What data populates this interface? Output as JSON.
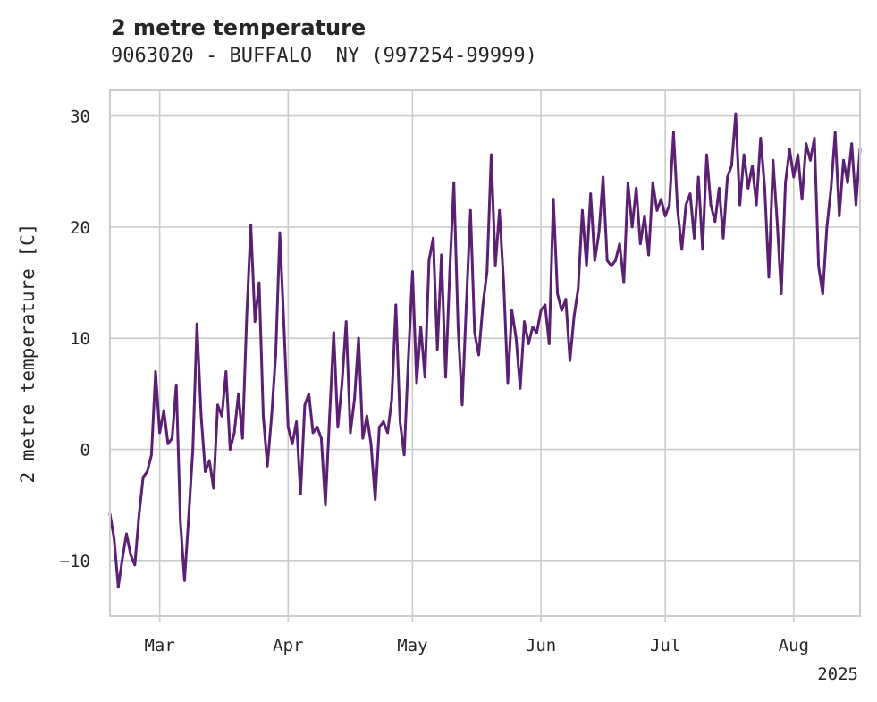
{
  "chart_data": {
    "type": "line",
    "title": "2 metre temperature",
    "subtitle": "9063020 - BUFFALO  NY (997254-99999)",
    "xlabel": "",
    "ylabel": "2 metre temperature [C]",
    "x_tick_labels": [
      "Mar",
      "Apr",
      "May",
      "Jun",
      "Jul",
      "Aug"
    ],
    "x_offset_label": "2025",
    "y_tick_labels": [
      "−10",
      "0",
      "10",
      "20",
      "30"
    ],
    "y_ticks": [
      -10,
      0,
      10,
      20,
      30
    ],
    "ylim": [
      -15,
      32.3
    ],
    "xlim": [
      "2025-02-17",
      "2025-08-17"
    ],
    "grid": true,
    "series": [
      {
        "color": "#5b1f73",
        "points": [
          [
            "2025-02-17",
            -5.8
          ],
          [
            "2025-02-18",
            -8.0
          ],
          [
            "2025-02-19",
            -12.4
          ],
          [
            "2025-02-20",
            -9.8
          ],
          [
            "2025-02-21",
            -7.6
          ],
          [
            "2025-02-22",
            -9.5
          ],
          [
            "2025-02-23",
            -10.4
          ],
          [
            "2025-02-24",
            -6.0
          ],
          [
            "2025-02-25",
            -2.5
          ],
          [
            "2025-02-26",
            -2.0
          ],
          [
            "2025-02-27",
            -0.5
          ],
          [
            "2025-02-28",
            7.0
          ],
          [
            "2025-03-01",
            1.5
          ],
          [
            "2025-03-02",
            3.5
          ],
          [
            "2025-03-03",
            0.5
          ],
          [
            "2025-03-04",
            1.0
          ],
          [
            "2025-03-05",
            5.8
          ],
          [
            "2025-03-06",
            -6.5
          ],
          [
            "2025-03-07",
            -11.8
          ],
          [
            "2025-03-08",
            -6.0
          ],
          [
            "2025-03-09",
            0.0
          ],
          [
            "2025-03-10",
            11.3
          ],
          [
            "2025-03-11",
            3.0
          ],
          [
            "2025-03-12",
            -2.0
          ],
          [
            "2025-03-13",
            -1.0
          ],
          [
            "2025-03-14",
            -3.5
          ],
          [
            "2025-03-15",
            4.0
          ],
          [
            "2025-03-16",
            3.0
          ],
          [
            "2025-03-17",
            7.0
          ],
          [
            "2025-03-18",
            0.0
          ],
          [
            "2025-03-19",
            1.5
          ],
          [
            "2025-03-20",
            5.0
          ],
          [
            "2025-03-21",
            1.0
          ],
          [
            "2025-03-22",
            12.0
          ],
          [
            "2025-03-23",
            20.2
          ],
          [
            "2025-03-24",
            11.5
          ],
          [
            "2025-03-25",
            15.0
          ],
          [
            "2025-03-26",
            3.0
          ],
          [
            "2025-03-27",
            -1.5
          ],
          [
            "2025-03-28",
            3.0
          ],
          [
            "2025-03-29",
            8.5
          ],
          [
            "2025-03-30",
            19.5
          ],
          [
            "2025-03-31",
            11.0
          ],
          [
            "2025-04-01",
            2.0
          ],
          [
            "2025-04-02",
            0.5
          ],
          [
            "2025-04-03",
            2.5
          ],
          [
            "2025-04-04",
            -4.0
          ],
          [
            "2025-04-05",
            4.0
          ],
          [
            "2025-04-06",
            5.0
          ],
          [
            "2025-04-07",
            1.5
          ],
          [
            "2025-04-08",
            2.0
          ],
          [
            "2025-04-09",
            1.0
          ],
          [
            "2025-04-10",
            -5.0
          ],
          [
            "2025-04-11",
            3.0
          ],
          [
            "2025-04-12",
            10.5
          ],
          [
            "2025-04-13",
            2.0
          ],
          [
            "2025-04-14",
            6.0
          ],
          [
            "2025-04-15",
            11.5
          ],
          [
            "2025-04-16",
            1.5
          ],
          [
            "2025-04-17",
            4.5
          ],
          [
            "2025-04-18",
            10.0
          ],
          [
            "2025-04-19",
            1.0
          ],
          [
            "2025-04-20",
            3.0
          ],
          [
            "2025-04-21",
            0.5
          ],
          [
            "2025-04-22",
            -4.5
          ],
          [
            "2025-04-23",
            2.0
          ],
          [
            "2025-04-24",
            2.5
          ],
          [
            "2025-04-25",
            1.5
          ],
          [
            "2025-04-26",
            4.5
          ],
          [
            "2025-04-27",
            13.0
          ],
          [
            "2025-04-28",
            2.5
          ],
          [
            "2025-04-29",
            -0.5
          ],
          [
            "2025-04-30",
            8.0
          ],
          [
            "2025-05-01",
            16.0
          ],
          [
            "2025-05-02",
            6.0
          ],
          [
            "2025-05-03",
            11.0
          ],
          [
            "2025-05-04",
            6.5
          ],
          [
            "2025-05-05",
            17.0
          ],
          [
            "2025-05-06",
            19.0
          ],
          [
            "2025-05-07",
            9.0
          ],
          [
            "2025-05-08",
            17.5
          ],
          [
            "2025-05-09",
            6.5
          ],
          [
            "2025-05-10",
            16.0
          ],
          [
            "2025-05-11",
            24.0
          ],
          [
            "2025-05-12",
            11.0
          ],
          [
            "2025-05-13",
            4.0
          ],
          [
            "2025-05-14",
            13.0
          ],
          [
            "2025-05-15",
            21.5
          ],
          [
            "2025-05-16",
            10.5
          ],
          [
            "2025-05-17",
            8.5
          ],
          [
            "2025-05-18",
            13.0
          ],
          [
            "2025-05-19",
            16.0
          ],
          [
            "2025-05-20",
            26.5
          ],
          [
            "2025-05-21",
            16.5
          ],
          [
            "2025-05-22",
            21.5
          ],
          [
            "2025-05-23",
            15.0
          ],
          [
            "2025-05-24",
            6.0
          ],
          [
            "2025-05-25",
            12.5
          ],
          [
            "2025-05-26",
            10.0
          ],
          [
            "2025-05-27",
            5.5
          ],
          [
            "2025-05-28",
            11.5
          ],
          [
            "2025-05-29",
            9.5
          ],
          [
            "2025-05-30",
            11.0
          ],
          [
            "2025-05-31",
            10.5
          ],
          [
            "2025-06-01",
            12.5
          ],
          [
            "2025-06-02",
            13.0
          ],
          [
            "2025-06-03",
            9.5
          ],
          [
            "2025-06-04",
            22.5
          ],
          [
            "2025-06-05",
            14.0
          ],
          [
            "2025-06-06",
            12.5
          ],
          [
            "2025-06-07",
            13.5
          ],
          [
            "2025-06-08",
            8.0
          ],
          [
            "2025-06-09",
            12.0
          ],
          [
            "2025-06-10",
            14.5
          ],
          [
            "2025-06-11",
            21.5
          ],
          [
            "2025-06-12",
            16.5
          ],
          [
            "2025-06-13",
            23.0
          ],
          [
            "2025-06-14",
            17.0
          ],
          [
            "2025-06-15",
            19.5
          ],
          [
            "2025-06-16",
            24.5
          ],
          [
            "2025-06-17",
            17.0
          ],
          [
            "2025-06-18",
            16.5
          ],
          [
            "2025-06-19",
            17.0
          ],
          [
            "2025-06-20",
            18.5
          ],
          [
            "2025-06-21",
            15.0
          ],
          [
            "2025-06-22",
            24.0
          ],
          [
            "2025-06-23",
            20.0
          ],
          [
            "2025-06-24",
            23.5
          ],
          [
            "2025-06-25",
            18.5
          ],
          [
            "2025-06-26",
            21.0
          ],
          [
            "2025-06-27",
            17.5
          ],
          [
            "2025-06-28",
            24.0
          ],
          [
            "2025-06-29",
            21.5
          ],
          [
            "2025-06-30",
            22.5
          ],
          [
            "2025-07-01",
            21.0
          ],
          [
            "2025-07-02",
            22.0
          ],
          [
            "2025-07-03",
            28.5
          ],
          [
            "2025-07-04",
            21.5
          ],
          [
            "2025-07-05",
            18.0
          ],
          [
            "2025-07-06",
            22.0
          ],
          [
            "2025-07-07",
            23.0
          ],
          [
            "2025-07-08",
            19.0
          ],
          [
            "2025-07-09",
            24.5
          ],
          [
            "2025-07-10",
            18.0
          ],
          [
            "2025-07-11",
            26.5
          ],
          [
            "2025-07-12",
            22.0
          ],
          [
            "2025-07-13",
            20.5
          ],
          [
            "2025-07-14",
            23.5
          ],
          [
            "2025-07-15",
            19.0
          ],
          [
            "2025-07-16",
            24.5
          ],
          [
            "2025-07-17",
            25.5
          ],
          [
            "2025-07-18",
            30.2
          ],
          [
            "2025-07-19",
            22.0
          ],
          [
            "2025-07-20",
            26.5
          ],
          [
            "2025-07-21",
            23.5
          ],
          [
            "2025-07-22",
            25.5
          ],
          [
            "2025-07-23",
            22.0
          ],
          [
            "2025-07-24",
            28.0
          ],
          [
            "2025-07-25",
            23.5
          ],
          [
            "2025-07-26",
            15.5
          ],
          [
            "2025-07-27",
            26.0
          ],
          [
            "2025-07-28",
            20.5
          ],
          [
            "2025-07-29",
            14.0
          ],
          [
            "2025-07-30",
            24.0
          ],
          [
            "2025-07-31",
            27.0
          ],
          [
            "2025-08-01",
            24.5
          ],
          [
            "2025-08-02",
            26.5
          ],
          [
            "2025-08-03",
            22.5
          ],
          [
            "2025-08-04",
            27.5
          ],
          [
            "2025-08-05",
            26.0
          ],
          [
            "2025-08-06",
            28.0
          ],
          [
            "2025-08-07",
            16.5
          ],
          [
            "2025-08-08",
            14.0
          ],
          [
            "2025-08-09",
            20.0
          ],
          [
            "2025-08-10",
            23.5
          ],
          [
            "2025-08-11",
            28.5
          ],
          [
            "2025-08-12",
            21.0
          ],
          [
            "2025-08-13",
            26.0
          ],
          [
            "2025-08-14",
            24.0
          ],
          [
            "2025-08-15",
            27.5
          ],
          [
            "2025-08-16",
            22.0
          ],
          [
            "2025-08-17",
            27.0
          ]
        ]
      }
    ]
  }
}
